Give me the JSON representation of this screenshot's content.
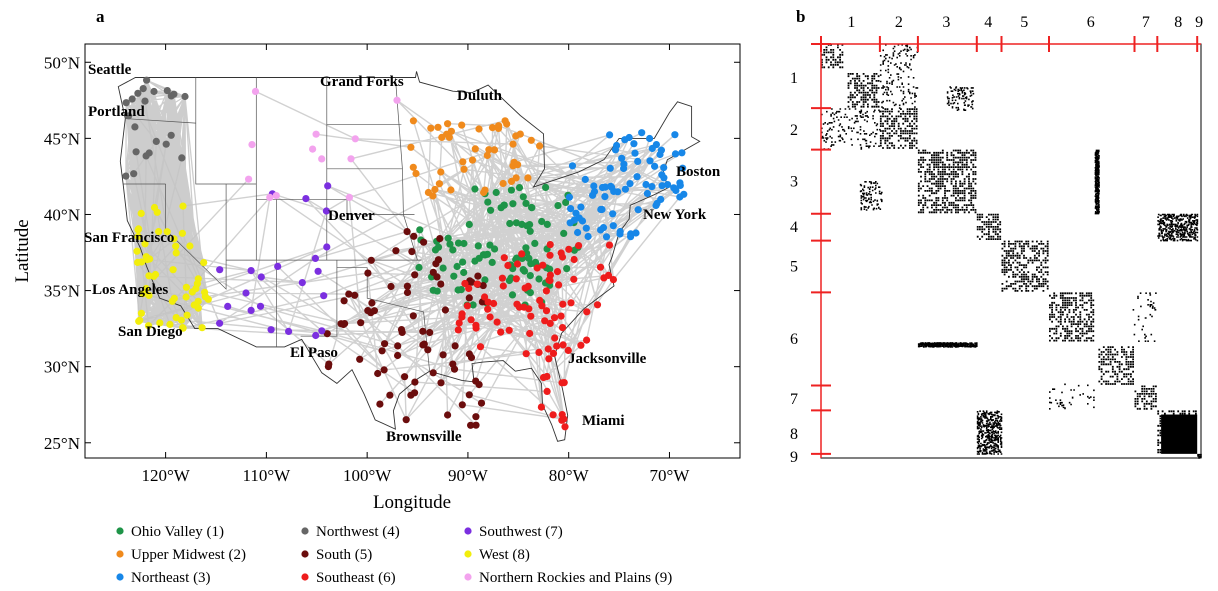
{
  "panel_a": {
    "label": "a",
    "xlabel": "Longitude",
    "ylabel": "Latitude",
    "x_ticks": [
      "120°W",
      "110°W",
      "100°W",
      "90°W",
      "80°W",
      "70°W"
    ],
    "y_ticks": [
      "50°N",
      "45°N",
      "40°N",
      "35°N",
      "30°N",
      "25°N"
    ],
    "cities": [
      {
        "name": "Seattle",
        "lon": -122.3,
        "lat": 47.6
      },
      {
        "name": "Portland",
        "lon": -122.7,
        "lat": 45.5
      },
      {
        "name": "San Francisco",
        "lon": -122.4,
        "lat": 37.8
      },
      {
        "name": "Los Angeles",
        "lon": -118.2,
        "lat": 34.1
      },
      {
        "name": "San Diego",
        "lon": -117.2,
        "lat": 32.7
      },
      {
        "name": "El Paso",
        "lon": -106.5,
        "lat": 31.8
      },
      {
        "name": "Denver",
        "lon": -104.9,
        "lat": 39.7
      },
      {
        "name": "Grand Forks",
        "lon": -97.0,
        "lat": 47.9
      },
      {
        "name": "Duluth",
        "lon": -92.1,
        "lat": 46.8
      },
      {
        "name": "Boston",
        "lon": -71.1,
        "lat": 42.4
      },
      {
        "name": "New York",
        "lon": -74.0,
        "lat": 40.7
      },
      {
        "name": "Jacksonville",
        "lon": -81.7,
        "lat": 30.3
      },
      {
        "name": "Miami",
        "lon": -80.2,
        "lat": 25.8
      },
      {
        "name": "Brownsville",
        "lon": -97.5,
        "lat": 25.9
      }
    ],
    "legend": [
      {
        "label": "Ohio Valley (1)",
        "color": "#1e9448"
      },
      {
        "label": "Upper Midwest (2)",
        "color": "#f08a1c"
      },
      {
        "label": "Northeast (3)",
        "color": "#1787e8"
      },
      {
        "label": "Northwest (4)",
        "color": "#666666"
      },
      {
        "label": "South (5)",
        "color": "#6b0d0d"
      },
      {
        "label": "Southeast (6)",
        "color": "#ee1c1c"
      },
      {
        "label": "Southwest (7)",
        "color": "#7b2fe0"
      },
      {
        "label": "West (8)",
        "color": "#f2ee0c"
      },
      {
        "label": "Northern Rockies and Plains (9)",
        "color": "#f3a3ee"
      }
    ]
  },
  "panel_b": {
    "label": "b",
    "cluster_labels": [
      "1",
      "2",
      "3",
      "4",
      "5",
      "6",
      "7",
      "8",
      "9"
    ]
  }
}
